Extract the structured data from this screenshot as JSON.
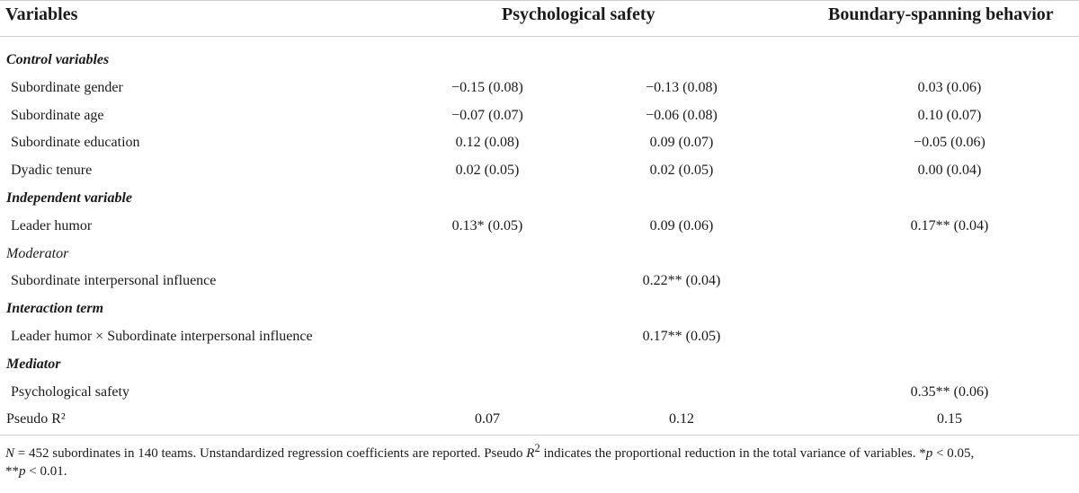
{
  "header": {
    "variables": "Variables",
    "psychological_safety": "Psychological safety",
    "boundary_spanning": "Boundary-spanning behavior"
  },
  "rows": [
    {
      "label": "Control variables",
      "kind": "section",
      "c1": "",
      "c2": "",
      "c3": ""
    },
    {
      "label": "Subordinate gender",
      "kind": "item",
      "c1": "−0.15 (0.08)",
      "c2": "−0.13 (0.08)",
      "c3": "0.03 (0.06)"
    },
    {
      "label": "Subordinate age",
      "kind": "item",
      "c1": "−0.07 (0.07)",
      "c2": "−0.06 (0.08)",
      "c3": "0.10 (0.07)"
    },
    {
      "label": "Subordinate education",
      "kind": "item",
      "c1": "0.12 (0.08)",
      "c2": "0.09 (0.07)",
      "c3": "−0.05 (0.06)"
    },
    {
      "label": "Dyadic tenure",
      "kind": "item",
      "c1": "0.02 (0.05)",
      "c2": "0.02 (0.05)",
      "c3": "0.00 (0.04)"
    },
    {
      "label": "Independent variable",
      "kind": "section",
      "c1": "",
      "c2": "",
      "c3": ""
    },
    {
      "label": "Leader humor",
      "kind": "item",
      "c1": "0.13* (0.05)",
      "c2": "0.09 (0.06)",
      "c3": "0.17** (0.04)"
    },
    {
      "label": "Moderator",
      "kind": "section-plain",
      "c1": "",
      "c2": "",
      "c3": ""
    },
    {
      "label": "Subordinate interpersonal influence",
      "kind": "item",
      "c1": "",
      "c2": "0.22** (0.04)",
      "c3": ""
    },
    {
      "label": "Interaction term",
      "kind": "section",
      "c1": "",
      "c2": "",
      "c3": ""
    },
    {
      "label": "Leader humor × Subordinate interpersonal influence",
      "kind": "item",
      "c1": "",
      "c2": "0.17** (0.05)",
      "c3": ""
    },
    {
      "label": "Mediator",
      "kind": "section",
      "c1": "",
      "c2": "",
      "c3": ""
    },
    {
      "label": "Psychological safety",
      "kind": "item",
      "c1": "",
      "c2": "",
      "c3": "0.35** (0.06)"
    },
    {
      "label": "Pseudo R²",
      "kind": "top",
      "c1": "0.07",
      "c2": "0.12",
      "c3": "0.15"
    }
  ],
  "note": {
    "n_var": "N",
    "text1": " = 452 subordinates in 140 teams. Unstandardized regression coefficients are reported. Pseudo ",
    "r_var": "R",
    "sup2": "2",
    "text2": " indicates the proportional reduction in the total variance of variables. *",
    "p1": "p",
    "text3": " < 0.05,",
    "text4": "**",
    "p2": "p",
    "text5": " < 0.01."
  }
}
